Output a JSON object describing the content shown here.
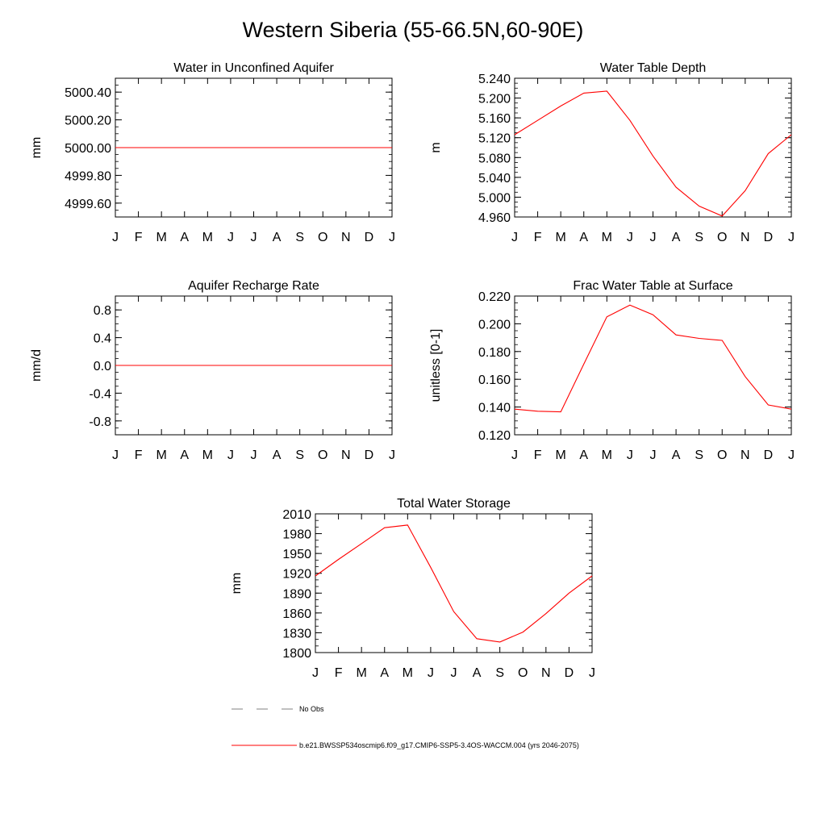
{
  "title": "Western Siberia (55-66.5N,60-90E)",
  "months": [
    "J",
    "F",
    "M",
    "A",
    "M",
    "J",
    "J",
    "A",
    "S",
    "O",
    "N",
    "D",
    "J"
  ],
  "chart_data": [
    {
      "type": "line",
      "title": "Water in Unconfined Aquifer",
      "ylabel": "mm",
      "ylim": [
        4999.5,
        5000.5
      ],
      "yticks": [
        4999.6,
        4999.8,
        5000.0,
        5000.2,
        5000.4
      ],
      "ytick_labels": [
        "4999.60",
        "4999.80",
        "5000.00",
        "5000.20",
        "5000.40"
      ],
      "yminor": 0.05,
      "series": [
        {
          "color": "#ff0000",
          "values": [
            5000,
            5000,
            5000,
            5000,
            5000,
            5000,
            5000,
            5000,
            5000,
            5000,
            5000,
            5000,
            5000
          ]
        }
      ]
    },
    {
      "type": "line",
      "title": "Water Table Depth",
      "ylabel": "m",
      "ylim": [
        4.96,
        5.24
      ],
      "yticks": [
        4.96,
        5.0,
        5.04,
        5.08,
        5.12,
        5.16,
        5.2,
        5.24
      ],
      "ytick_labels": [
        "4.960",
        "5.000",
        "5.040",
        "5.080",
        "5.120",
        "5.160",
        "5.200",
        "5.240"
      ],
      "yminor": 0.01,
      "series": [
        {
          "color": "#ff0000",
          "values": [
            5.126,
            5.155,
            5.184,
            5.21,
            5.214,
            5.155,
            5.083,
            5.02,
            4.982,
            4.962,
            5.013,
            5.088,
            5.126
          ]
        }
      ]
    },
    {
      "type": "line",
      "title": "Aquifer Recharge Rate",
      "ylabel": "mm/d",
      "ylim": [
        -1.0,
        1.0
      ],
      "yticks": [
        -0.8,
        -0.4,
        0.0,
        0.4,
        0.8
      ],
      "ytick_labels": [
        "-0.8",
        "-0.4",
        "0.0",
        "0.4",
        "0.8"
      ],
      "yminor": 0.1,
      "series": [
        {
          "color": "#ff0000",
          "values": [
            0,
            0,
            0,
            0,
            0,
            0,
            0,
            0,
            0,
            0,
            0,
            0,
            0
          ]
        }
      ]
    },
    {
      "type": "line",
      "title": "Frac Water Table at Surface",
      "ylabel": "unitless [0-1]",
      "ylim": [
        0.12,
        0.22
      ],
      "yticks": [
        0.12,
        0.14,
        0.16,
        0.18,
        0.2,
        0.22
      ],
      "ytick_labels": [
        "0.120",
        "0.140",
        "0.160",
        "0.180",
        "0.200",
        "0.220"
      ],
      "yminor": 0.005,
      "series": [
        {
          "color": "#ff0000",
          "values": [
            0.1385,
            0.137,
            0.1365,
            0.171,
            0.205,
            0.2135,
            0.2065,
            0.192,
            0.1895,
            0.188,
            0.162,
            0.1415,
            0.1385
          ]
        }
      ]
    },
    {
      "type": "line",
      "title": "Total Water Storage",
      "ylabel": "mm",
      "ylim": [
        1800,
        2010
      ],
      "yticks": [
        1800,
        1830,
        1860,
        1890,
        1920,
        1950,
        1980,
        2010
      ],
      "ytick_labels": [
        "1800",
        "1830",
        "1860",
        "1890",
        "1920",
        "1950",
        "1980",
        "2010"
      ],
      "yminor": 10,
      "series": [
        {
          "color": "#ff0000",
          "values": [
            1916,
            1941,
            1965,
            1989,
            1993,
            1929,
            1862,
            1821,
            1816,
            1831,
            1859,
            1890,
            1916
          ]
        }
      ]
    }
  ],
  "legend": [
    {
      "label": "No Obs",
      "color": "#808080",
      "dash": "dashed"
    },
    {
      "label": "b.e21.BWSSP534oscmip6.f09_g17.CMIP6-SSP5-3.4OS-WACCM.004 (yrs 2046-2075)",
      "color": "#ff0000",
      "dash": "solid"
    }
  ]
}
